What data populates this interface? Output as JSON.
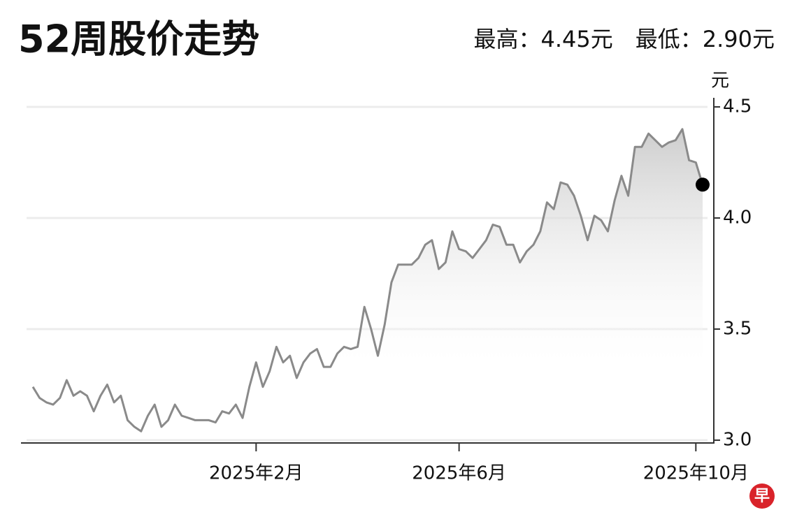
{
  "chart_data": {
    "type": "line",
    "title": "52周股价走势",
    "subtitle": "最高：4.45元　最低：2.90元",
    "y_label": "元",
    "logo": "早",
    "categories": [
      null,
      null,
      null,
      null,
      null,
      null,
      null,
      null,
      null,
      null,
      null,
      null,
      null,
      null,
      null,
      null,
      null,
      null,
      null,
      null,
      null,
      null,
      null,
      null,
      null,
      null,
      null,
      null,
      null,
      null,
      null,
      null,
      null,
      "2025年2月",
      null,
      null,
      null,
      null,
      null,
      null,
      null,
      null,
      null,
      null,
      null,
      null,
      null,
      null,
      null,
      null,
      null,
      null,
      null,
      null,
      null,
      null,
      null,
      null,
      null,
      null,
      null,
      null,
      null,
      "2025年6月",
      null,
      null,
      null,
      null,
      null,
      null,
      null,
      null,
      null,
      null,
      null,
      null,
      null,
      null,
      null,
      null,
      null,
      null,
      null,
      null,
      null,
      null,
      null,
      null,
      null,
      null,
      null,
      null,
      null,
      null,
      null,
      null,
      null,
      null,
      "2025年10月",
      null
    ],
    "series": [
      {
        "name": "股价",
        "color": "#8a8a8a",
        "values": [
          3.24,
          3.19,
          3.17,
          3.16,
          3.19,
          3.27,
          3.2,
          3.22,
          3.2,
          3.13,
          3.2,
          3.25,
          3.17,
          3.2,
          3.09,
          3.06,
          3.04,
          3.11,
          3.16,
          3.06,
          3.09,
          3.16,
          3.11,
          3.1,
          3.09,
          3.09,
          3.09,
          3.08,
          3.13,
          3.12,
          3.16,
          3.1,
          3.24,
          3.35,
          3.24,
          3.31,
          3.42,
          3.35,
          3.38,
          3.28,
          3.35,
          3.39,
          3.41,
          3.33,
          3.33,
          3.39,
          3.42,
          3.41,
          3.42,
          3.6,
          3.5,
          3.38,
          3.52,
          3.71,
          3.79,
          3.79,
          3.79,
          3.82,
          3.88,
          3.9,
          3.77,
          3.8,
          3.94,
          3.86,
          3.85,
          3.82,
          3.86,
          3.9,
          3.97,
          3.96,
          3.88,
          3.88,
          3.8,
          3.85,
          3.88,
          3.94,
          4.07,
          4.04,
          4.16,
          4.15,
          4.1,
          4.01,
          3.9,
          4.01,
          3.99,
          3.94,
          4.08,
          4.19,
          4.1,
          4.32,
          4.32,
          4.38,
          4.35,
          4.32,
          4.34,
          4.35,
          4.4,
          4.26,
          4.25,
          4.15
        ]
      }
    ],
    "ylim": [
      3.0,
      4.5
    ],
    "yticks": [
      {
        "value": 3.0,
        "label": "3.0"
      },
      3.5,
      {
        "value": 4.0,
        "label": "4.0"
      },
      4.5
    ],
    "grid": true,
    "area_gradient": true,
    "end_marker_color": "#000000"
  }
}
